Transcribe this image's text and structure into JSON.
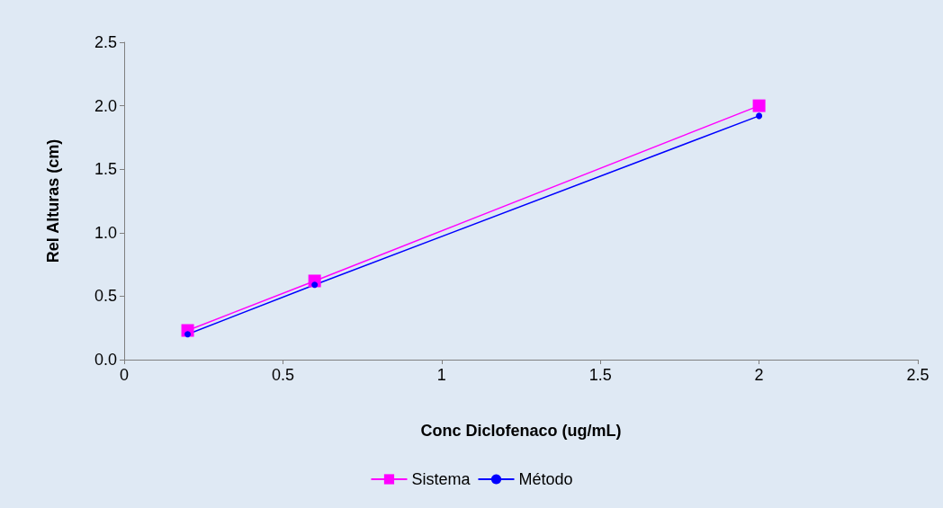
{
  "chart_data": {
    "type": "line",
    "xlabel": "Conc Diclofenaco (ug/mL)",
    "ylabel": "Rel Alturas (cm)",
    "x": [
      0.2,
      0.6,
      2
    ],
    "series": [
      {
        "name": "Sistema",
        "color": "#ff00ff",
        "marker": "square",
        "values": [
          0.23,
          0.62,
          2.0
        ]
      },
      {
        "name": "Método",
        "color": "#0000ff",
        "marker": "circle",
        "values": [
          0.2,
          0.59,
          1.92
        ]
      }
    ],
    "xlim": [
      0,
      2.5
    ],
    "xticks": [
      0,
      0.5,
      1,
      1.5,
      2,
      2.5
    ],
    "ylim": [
      0,
      2.5
    ],
    "yticks": [
      {
        "value": 0,
        "label": "0.0"
      },
      {
        "value": 0.5,
        "label": "0.5"
      },
      {
        "value": 1,
        "label": "1.0"
      },
      {
        "value": 1.5,
        "label": "1.5"
      },
      {
        "value": 2,
        "label": "2.0"
      },
      {
        "value": 2.5,
        "label": "2.5"
      }
    ],
    "grid": false,
    "legend": "bottom",
    "line_style": "solid"
  }
}
